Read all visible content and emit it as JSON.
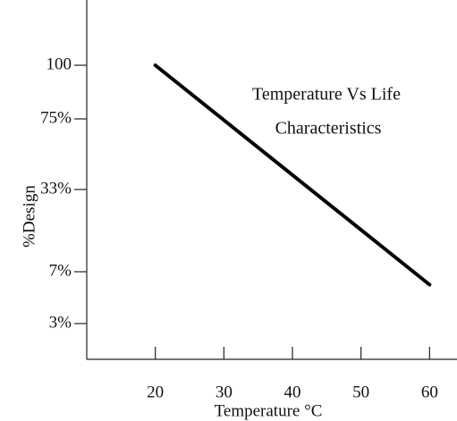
{
  "chart_data": {
    "type": "line",
    "annotation": [
      "Temperature Vs Life",
      "Characteristics"
    ],
    "x_label": "Temperature °C",
    "y_label": "%Design",
    "x": [
      20,
      60
    ],
    "series": [
      {
        "color": "#000000",
        "values": [
          100,
          6
        ]
      }
    ],
    "xlim": [
      10,
      64
    ],
    "xticks": [
      20,
      30,
      40,
      50,
      60
    ],
    "yticks": [
      {
        "value": 100,
        "label": "100"
      },
      {
        "value": 75,
        "label": "75%"
      },
      {
        "value": 33,
        "label": "33%"
      },
      {
        "value": 7,
        "label": "7%"
      },
      {
        "value": 3,
        "label": "3%"
      }
    ],
    "grid": false
  }
}
